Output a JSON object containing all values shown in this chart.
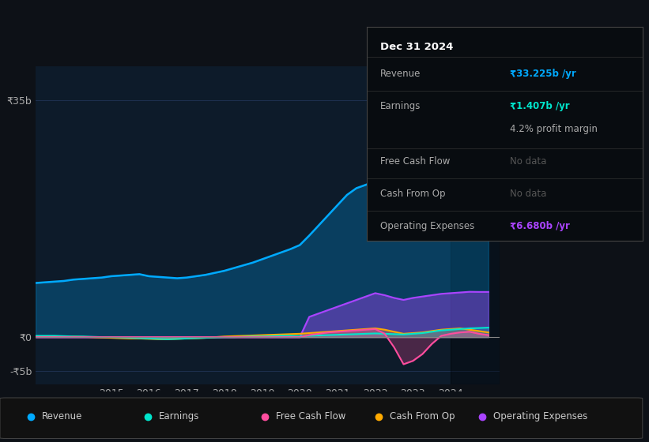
{
  "bg_color": "#0d1117",
  "plot_bg_color": "#0d1b2a",
  "grid_color": "#1e3050",
  "ylim": [
    -7000000000.0,
    40000000000.0
  ],
  "yticks": [
    -5000000000.0,
    0,
    35000000000.0
  ],
  "ytick_labels": [
    "-₹5b",
    "₹0",
    "₹35b"
  ],
  "xtick_labels": [
    "2015",
    "2016",
    "2017",
    "2018",
    "2019",
    "2020",
    "2021",
    "2022",
    "2023",
    "2024"
  ],
  "colors": {
    "revenue": "#00aaff",
    "earnings": "#00e5cc",
    "free_cash_flow": "#ff4d9e",
    "cash_from_op": "#ffaa00",
    "operating_expenses": "#aa44ff"
  },
  "legend": [
    {
      "label": "Revenue",
      "color": "#00aaff"
    },
    {
      "label": "Earnings",
      "color": "#00e5cc"
    },
    {
      "label": "Free Cash Flow",
      "color": "#ff4d9e"
    },
    {
      "label": "Cash From Op",
      "color": "#ffaa00"
    },
    {
      "label": "Operating Expenses",
      "color": "#aa44ff"
    }
  ],
  "info_box": {
    "title": "Dec 31 2024",
    "rows": [
      {
        "label": "Revenue",
        "value": "₹33.225b /yr",
        "value_color": "#00aaff"
      },
      {
        "label": "Earnings",
        "value": "₹1.407b /yr",
        "value_color": "#00e5cc"
      },
      {
        "label": "",
        "value": "4.2% profit margin",
        "value_color": "#aaaaaa"
      },
      {
        "label": "Free Cash Flow",
        "value": "No data",
        "value_color": "#555555"
      },
      {
        "label": "Cash From Op",
        "value": "No data",
        "value_color": "#555555"
      },
      {
        "label": "Operating Expenses",
        "value": "₹6.680b /yr",
        "value_color": "#aa44ff"
      }
    ],
    "dividers": [
      0.86,
      0.7,
      0.43,
      0.29,
      0.14
    ]
  },
  "years": [
    2013.0,
    2013.25,
    2013.5,
    2013.75,
    2014.0,
    2014.25,
    2014.5,
    2014.75,
    2015.0,
    2015.25,
    2015.5,
    2015.75,
    2016.0,
    2016.25,
    2016.5,
    2016.75,
    2017.0,
    2017.25,
    2017.5,
    2017.75,
    2018.0,
    2018.25,
    2018.5,
    2018.75,
    2019.0,
    2019.25,
    2019.5,
    2019.75,
    2020.0,
    2020.25,
    2020.5,
    2020.75,
    2021.0,
    2021.25,
    2021.5,
    2021.75,
    2022.0,
    2022.25,
    2022.5,
    2022.75,
    2023.0,
    2023.25,
    2023.5,
    2023.75,
    2024.0,
    2024.25,
    2024.5,
    2024.75,
    2025.0
  ],
  "revenue": [
    8000000000.0,
    8100000000.0,
    8200000000.0,
    8300000000.0,
    8500000000.0,
    8600000000.0,
    8700000000.0,
    8800000000.0,
    9000000000.0,
    9100000000.0,
    9200000000.0,
    9300000000.0,
    9000000000.0,
    8900000000.0,
    8800000000.0,
    8700000000.0,
    8800000000.0,
    9000000000.0,
    9200000000.0,
    9500000000.0,
    9800000000.0,
    10200000000.0,
    10600000000.0,
    11000000000.0,
    11500000000.0,
    12000000000.0,
    12500000000.0,
    13000000000.0,
    13600000000.0,
    15000000000.0,
    16500000000.0,
    18000000000.0,
    19500000000.0,
    21000000000.0,
    22000000000.0,
    22500000000.0,
    23000000000.0,
    22500000000.0,
    22000000000.0,
    21500000000.0,
    22000000000.0,
    23500000000.0,
    26000000000.0,
    28000000000.0,
    30000000000.0,
    31500000000.0,
    33000000000.0,
    33500000000.0,
    33225000000.0
  ],
  "earnings": [
    200000000.0,
    200000000.0,
    200000000.0,
    150000000.0,
    100000000.0,
    100000000.0,
    50000000.0,
    0.0,
    0.0,
    -50000000.0,
    -100000000.0,
    -150000000.0,
    -200000000.0,
    -250000000.0,
    -300000000.0,
    -250000000.0,
    -200000000.0,
    -150000000.0,
    -100000000.0,
    -50000000.0,
    0.0,
    0.0,
    50000000.0,
    100000000.0,
    100000000.0,
    150000000.0,
    200000000.0,
    200000000.0,
    150000000.0,
    200000000.0,
    250000000.0,
    300000000.0,
    350000000.0,
    400000000.0,
    450000000.0,
    500000000.0,
    550000000.0,
    500000000.0,
    450000000.0,
    400000000.0,
    500000000.0,
    600000000.0,
    800000000.0,
    1000000000.0,
    1100000000.0,
    1200000000.0,
    1300000000.0,
    1350000000.0,
    1407000000.0
  ],
  "free_cash_flow": [
    0.0,
    0.0,
    0.0,
    0.0,
    0.0,
    0.0,
    0.0,
    0.0,
    0.0,
    0.0,
    0.0,
    0.0,
    0.0,
    0.0,
    0.0,
    0.0,
    0.0,
    0.0,
    0.0,
    0.0,
    0.0,
    0.0,
    0.0,
    0.0,
    0.0,
    0.0,
    0.0,
    0.0,
    0.0,
    300000000.0,
    500000000.0,
    700000000.0,
    800000000.0,
    900000000.0,
    1000000000.0,
    1100000000.0,
    1200000000.0,
    500000000.0,
    -1500000000.0,
    -4000000000.0,
    -3500000000.0,
    -2500000000.0,
    -1000000000.0,
    200000000.0,
    500000000.0,
    700000000.0,
    800000000.0,
    500000000.0,
    300000000.0
  ],
  "cash_from_op": [
    100000000.0,
    100000000.0,
    100000000.0,
    100000000.0,
    100000000.0,
    50000000.0,
    0.0,
    -50000000.0,
    -100000000.0,
    -150000000.0,
    -200000000.0,
    -200000000.0,
    -250000000.0,
    -300000000.0,
    -300000000.0,
    -250000000.0,
    -200000000.0,
    -150000000.0,
    -100000000.0,
    0.0,
    100000000.0,
    150000000.0,
    200000000.0,
    250000000.0,
    300000000.0,
    350000000.0,
    400000000.0,
    450000000.0,
    500000000.0,
    600000000.0,
    700000000.0,
    800000000.0,
    900000000.0,
    1000000000.0,
    1100000000.0,
    1200000000.0,
    1300000000.0,
    1100000000.0,
    800000000.0,
    500000000.0,
    600000000.0,
    700000000.0,
    900000000.0,
    1100000000.0,
    1200000000.0,
    1300000000.0,
    1100000000.0,
    900000000.0,
    700000000.0
  ],
  "operating_expenses": [
    0.0,
    0.0,
    0.0,
    0.0,
    0.0,
    0.0,
    0.0,
    0.0,
    0.0,
    0.0,
    0.0,
    0.0,
    0.0,
    0.0,
    0.0,
    0.0,
    0.0,
    0.0,
    0.0,
    0.0,
    0.0,
    0.0,
    0.0,
    0.0,
    0.0,
    0.0,
    0.0,
    0.0,
    0.0,
    3000000000.0,
    3500000000.0,
    4000000000.0,
    4500000000.0,
    5000000000.0,
    5500000000.0,
    6000000000.0,
    6500000000.0,
    6200000000.0,
    5800000000.0,
    5500000000.0,
    5800000000.0,
    6000000000.0,
    6200000000.0,
    6400000000.0,
    6500000000.0,
    6600000000.0,
    6700000000.0,
    6680000000.0,
    6680000000.0
  ]
}
